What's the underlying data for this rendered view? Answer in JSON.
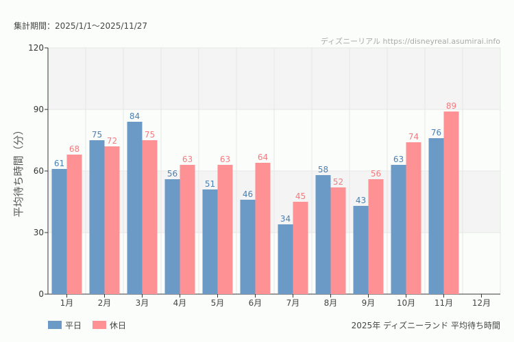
{
  "header": {
    "period": "集計期間：2025/1/1〜2025/11/27",
    "credit": "ディズニーリアル https://disneyreal.asumirai.info"
  },
  "footer": {
    "caption": "2025年 ディズニーランド 平均待ち時間"
  },
  "chart_data": {
    "type": "bar",
    "title": "",
    "ylabel": "平均待ち時間（分）",
    "xlabel": "",
    "ylim": [
      0,
      120
    ],
    "yticks": [
      0,
      30,
      60,
      90,
      120
    ],
    "grid": true,
    "legend_position": "bottom-left",
    "categories": [
      "1月",
      "2月",
      "3月",
      "4月",
      "5月",
      "6月",
      "7月",
      "8月",
      "9月",
      "10月",
      "11月",
      "12月"
    ],
    "series": [
      {
        "name": "平日",
        "color": "#6b9ac6",
        "label_color": "#4a7fb3",
        "values": [
          61,
          75,
          84,
          56,
          51,
          46,
          34,
          58,
          43,
          63,
          76,
          null
        ]
      },
      {
        "name": "休日",
        "color": "#fd9194",
        "label_color": "#f27b7f",
        "values": [
          68,
          72,
          75,
          63,
          63,
          64,
          45,
          52,
          56,
          74,
          89,
          null
        ]
      }
    ]
  }
}
